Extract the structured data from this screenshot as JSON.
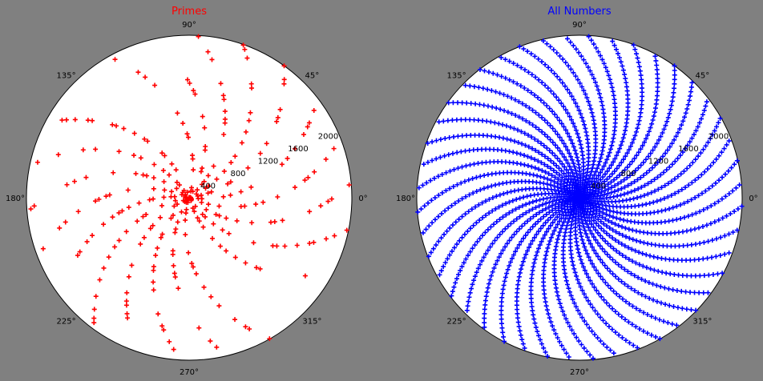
{
  "figure": {
    "background": "#808080"
  },
  "chart_data": [
    {
      "type": "scatter",
      "projection": "polar",
      "title": "Primes",
      "title_color": "#ff0000",
      "marker": "+",
      "marker_color": "#ff0000",
      "point_set": "primes",
      "n_max": 2000,
      "theta_equals_r": true,
      "theta_unit": "radians",
      "r_lim": [
        0,
        2000
      ],
      "r_ticks": [
        400,
        800,
        1200,
        1600,
        2000
      ],
      "theta_ticks": [
        "0°",
        "45°",
        "90°",
        "135°",
        "180°",
        "225°",
        "270°",
        "315°"
      ],
      "grid": false
    },
    {
      "type": "scatter",
      "projection": "polar",
      "title": "All Numbers",
      "title_color": "#0000ff",
      "marker": "+",
      "marker_color": "#0000ff",
      "point_set": "integers",
      "n_max": 2000,
      "theta_equals_r": true,
      "theta_unit": "radians",
      "r_lim": [
        0,
        2000
      ],
      "r_ticks": [
        400,
        800,
        1200,
        1600,
        2000
      ],
      "theta_ticks": [
        "0°",
        "45°",
        "90°",
        "135°",
        "180°",
        "225°",
        "270°",
        "315°"
      ],
      "grid": false
    }
  ]
}
